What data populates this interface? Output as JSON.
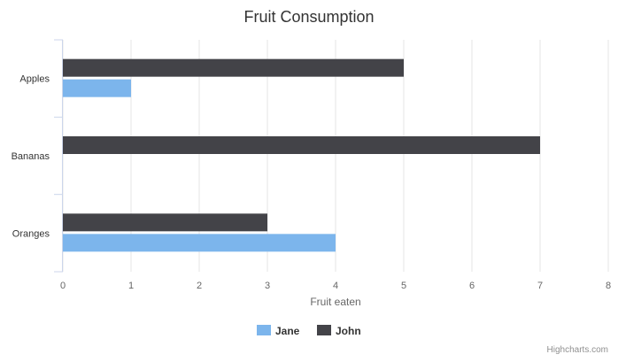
{
  "chart_data": {
    "type": "bar",
    "orientation": "horizontal",
    "title": "Fruit Consumption",
    "xlabel": "Fruit eaten",
    "categories": [
      "Apples",
      "Bananas",
      "Oranges"
    ],
    "xlim": [
      0,
      8
    ],
    "ticks": [
      "0",
      "1",
      "2",
      "3",
      "4",
      "5",
      "6",
      "7",
      "8"
    ],
    "grid": true,
    "legend_position": "bottom",
    "series": [
      {
        "name": "Jane",
        "color": "#7cb5ec",
        "values": [
          1,
          0,
          4
        ]
      },
      {
        "name": "John",
        "color": "#434348",
        "values": [
          5,
          7,
          3
        ]
      }
    ]
  },
  "credits": "Highcharts.com"
}
